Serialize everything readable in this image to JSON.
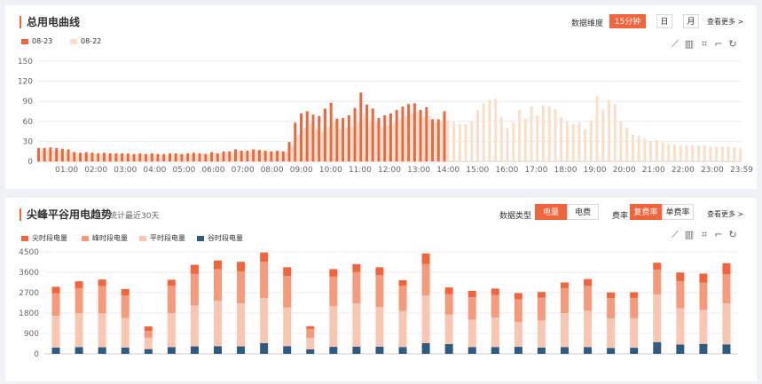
{
  "colors": {
    "accent": "#f2643c",
    "series_0823": "#f2643c",
    "series_0822": "#f9dfc7",
    "peak": "#f2643c",
    "high": "#f79a7b",
    "flat": "#f9c6b2",
    "valley": "#2f5a82",
    "grid": "#ececec"
  },
  "panel1": {
    "title": "总用电曲线",
    "granularity_label": "数据维度",
    "buttons": [
      "15分钟",
      "日",
      "月"
    ],
    "active_button": "15分钟",
    "more": "查看更多 >",
    "tool_icons": [
      "line-chart-icon",
      "bar-chart-icon",
      "crop-icon",
      "crop-reset-icon",
      "refresh-icon"
    ]
  },
  "panel2": {
    "title": "尖峰平谷用电趋势",
    "subtitle": "统计最近30天",
    "type_label": "数据类型",
    "type_buttons": [
      "电量",
      "电费"
    ],
    "active_type": "电量",
    "rate_label": "费率",
    "rate_buttons": [
      "复费率",
      "单费率"
    ],
    "active_rate": "复费率",
    "more": "查看更多 >",
    "tool_icons": [
      "line-chart-icon",
      "bar-chart-icon",
      "crop-icon",
      "crop-reset-icon",
      "refresh-icon"
    ]
  },
  "chart_data": [
    {
      "type": "bar",
      "legend": [
        "08-23",
        "08-22"
      ],
      "x_ticks": [
        "01:00",
        "02:00",
        "03:00",
        "04:00",
        "05:00",
        "06:00",
        "07:00",
        "08:00",
        "09:00",
        "10:00",
        "11:00",
        "12:00",
        "13:00",
        "14:00",
        "15:00",
        "16:00",
        "17:00",
        "18:00",
        "19:00",
        "20:00",
        "21:00",
        "22:00",
        "23:00",
        "23:59"
      ],
      "ylim": [
        0,
        150
      ],
      "y_ticks": [
        0,
        30,
        60,
        90,
        120,
        150
      ],
      "series": [
        {
          "name": "08-23",
          "values": [
            20,
            20,
            21,
            20,
            19,
            18,
            14,
            13,
            14,
            13,
            12,
            13,
            12,
            12,
            12,
            12,
            11,
            12,
            11,
            12,
            11,
            11,
            12,
            12,
            11,
            12,
            13,
            12,
            11,
            14,
            12,
            15,
            15,
            18,
            16,
            16,
            18,
            17,
            16,
            15,
            16,
            15,
            29,
            58,
            72,
            75,
            70,
            68,
            79,
            88,
            64,
            65,
            69,
            80,
            103,
            85,
            79,
            65,
            69,
            72,
            77,
            82,
            86,
            87,
            77,
            81,
            63,
            63,
            75
          ]
        },
        {
          "name": "08-22",
          "values": [
            18,
            17,
            16,
            16,
            15,
            14,
            12,
            12,
            12,
            12,
            11,
            11,
            11,
            11,
            10,
            10,
            10,
            11,
            10,
            11,
            10,
            10,
            11,
            11,
            10,
            11,
            12,
            12,
            11,
            13,
            12,
            14,
            14,
            16,
            15,
            14,
            16,
            16,
            15,
            14,
            15,
            14,
            22,
            40,
            50,
            56,
            48,
            44,
            52,
            60,
            48,
            50,
            52,
            58,
            70,
            62,
            60,
            52,
            54,
            58,
            62,
            68,
            72,
            74,
            66,
            68,
            58,
            60,
            62,
            59,
            56,
            56,
            59,
            77,
            87,
            92,
            94,
            66,
            50,
            58,
            77,
            64,
            82,
            69,
            84,
            82,
            78,
            66,
            60,
            56,
            58,
            48,
            62,
            98,
            78,
            92,
            86,
            60,
            50,
            40,
            38,
            34,
            30,
            32,
            28,
            26,
            26,
            24,
            24,
            25,
            24,
            24,
            22,
            22,
            22,
            22,
            21,
            20
          ]
        }
      ]
    },
    {
      "type": "bar",
      "stacked": true,
      "legend": [
        "尖时段电量",
        "峰时段电量",
        "平时段电量",
        "谷时段电量"
      ],
      "ylim": [
        0,
        4500
      ],
      "y_ticks": [
        0,
        900,
        1800,
        2700,
        3600,
        4500
      ],
      "x_count": 30,
      "series": [
        {
          "name": "谷时段电量",
          "values": [
            280,
            300,
            290,
            280,
            210,
            300,
            330,
            340,
            330,
            470,
            340,
            200,
            310,
            320,
            320,
            300,
            470,
            430,
            300,
            300,
            310,
            280,
            300,
            300,
            260,
            270,
            520,
            410,
            440,
            420
          ]
        },
        {
          "name": "平时段电量",
          "values": [
            1400,
            1500,
            1500,
            1300,
            500,
            1500,
            1800,
            2000,
            1900,
            2000,
            1700,
            500,
            1800,
            1900,
            1750,
            1600,
            2100,
            1300,
            1200,
            1300,
            1100,
            1200,
            1500,
            1600,
            1300,
            1300,
            2100,
            1600,
            1500,
            1800
          ]
        },
        {
          "name": "峰时段电量",
          "values": [
            1000,
            1100,
            1200,
            1000,
            300,
            1200,
            1400,
            1400,
            1400,
            1600,
            1400,
            400,
            1300,
            1400,
            1400,
            1100,
            1400,
            900,
            1000,
            1000,
            1000,
            1000,
            1100,
            1100,
            900,
            900,
            1100,
            1200,
            1200,
            1300
          ]
        },
        {
          "name": "尖时段电量",
          "values": [
            280,
            300,
            290,
            280,
            200,
            270,
            400,
            380,
            430,
            400,
            380,
            120,
            330,
            340,
            350,
            250,
            460,
            300,
            280,
            280,
            270,
            250,
            250,
            300,
            250,
            250,
            300,
            380,
            400,
            480
          ]
        }
      ]
    }
  ]
}
